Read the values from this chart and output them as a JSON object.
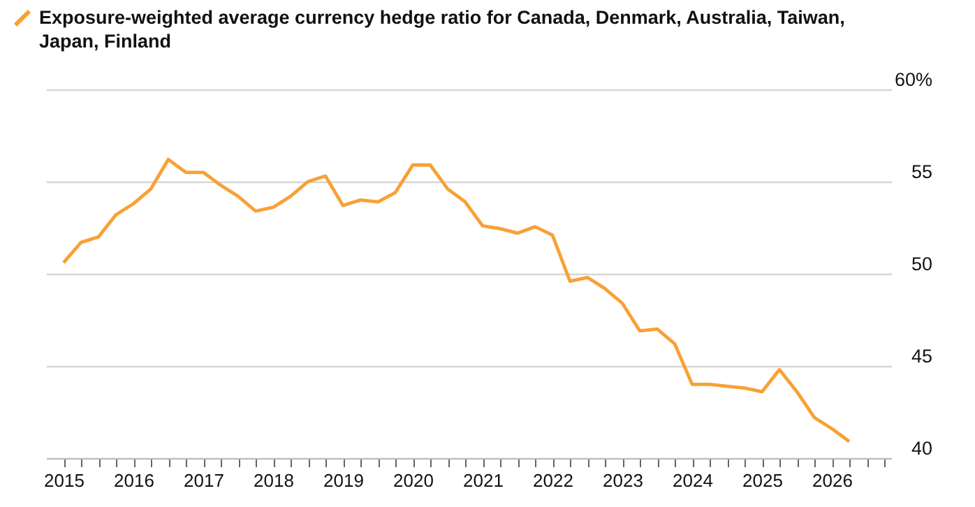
{
  "chart_data": {
    "type": "line",
    "title": "Exposure-weighted average currency hedge ratio for Canada, Denmark, Australia, Taiwan, Japan, Finland",
    "x": [
      2015,
      2015.25,
      2015.5,
      2015.75,
      2016,
      2016.25,
      2016.5,
      2016.75,
      2017,
      2017.25,
      2017.5,
      2017.75,
      2018,
      2018.25,
      2018.5,
      2018.75,
      2019,
      2019.25,
      2019.5,
      2019.75,
      2020,
      2020.25,
      2020.5,
      2020.75,
      2021,
      2021.25,
      2021.5,
      2021.75,
      2022,
      2022.25,
      2022.5,
      2022.75,
      2023,
      2023.25,
      2023.5,
      2023.75,
      2024,
      2024.25,
      2024.5,
      2024.75,
      2025,
      2025.25,
      2025.5,
      2025.75,
      2026,
      2026.25
    ],
    "series": [
      {
        "color": "#f8a135",
        "values": [
          50.6,
          51.7,
          52.0,
          53.2,
          53.8,
          54.6,
          56.2,
          55.5,
          55.5,
          54.8,
          54.2,
          53.4,
          53.6,
          54.2,
          55.0,
          55.3,
          53.7,
          54.0,
          53.9,
          54.4,
          55.9,
          55.9,
          54.6,
          53.9,
          52.6,
          52.45,
          52.2,
          52.55,
          52.1,
          49.6,
          49.8,
          49.2,
          48.4,
          46.9,
          47.0,
          46.2,
          44.0,
          44.0,
          43.9,
          43.8,
          43.6,
          44.8,
          43.6,
          42.2,
          41.6,
          40.9
        ]
      }
    ],
    "xlim": [
      2014.75,
      2026.85
    ],
    "xticks": [
      2015,
      {
        "value": 2015.25,
        "label": null
      },
      {
        "value": 2015.5,
        "label": null
      },
      {
        "value": 2015.75,
        "label": null
      },
      2016,
      {
        "value": 2016.25,
        "label": null
      },
      {
        "value": 2016.5,
        "label": null
      },
      {
        "value": 2016.75,
        "label": null
      },
      2017,
      {
        "value": 2017.25,
        "label": null
      },
      {
        "value": 2017.5,
        "label": null
      },
      {
        "value": 2017.75,
        "label": null
      },
      2018,
      {
        "value": 2018.25,
        "label": null
      },
      {
        "value": 2018.5,
        "label": null
      },
      {
        "value": 2018.75,
        "label": null
      },
      2019,
      {
        "value": 2019.25,
        "label": null
      },
      {
        "value": 2019.5,
        "label": null
      },
      {
        "value": 2019.75,
        "label": null
      },
      2020,
      {
        "value": 2020.25,
        "label": null
      },
      {
        "value": 2020.5,
        "label": null
      },
      {
        "value": 2020.75,
        "label": null
      },
      2021,
      {
        "value": 2021.25,
        "label": null
      },
      {
        "value": 2021.5,
        "label": null
      },
      {
        "value": 2021.75,
        "label": null
      },
      2022,
      {
        "value": 2022.25,
        "label": null
      },
      {
        "value": 2022.5,
        "label": null
      },
      {
        "value": 2022.75,
        "label": null
      },
      2023,
      {
        "value": 2023.25,
        "label": null
      },
      {
        "value": 2023.5,
        "label": null
      },
      {
        "value": 2023.75,
        "label": null
      },
      2024,
      {
        "value": 2024.25,
        "label": null
      },
      {
        "value": 2024.5,
        "label": null
      },
      {
        "value": 2024.75,
        "label": null
      },
      2025,
      {
        "value": 2025.25,
        "label": null
      },
      {
        "value": 2025.5,
        "label": null
      },
      {
        "value": 2025.75,
        "label": null
      },
      2026,
      {
        "value": 2026.25,
        "label": null
      },
      {
        "value": 2026.5,
        "label": null
      },
      {
        "value": 2026.75,
        "label": null
      }
    ],
    "ylim": [
      40,
      60
    ],
    "yticks": [
      40,
      45,
      50,
      55,
      {
        "value": 60,
        "label": "60%"
      }
    ],
    "grid": "y",
    "marker": "none",
    "line_style": "solid"
  }
}
